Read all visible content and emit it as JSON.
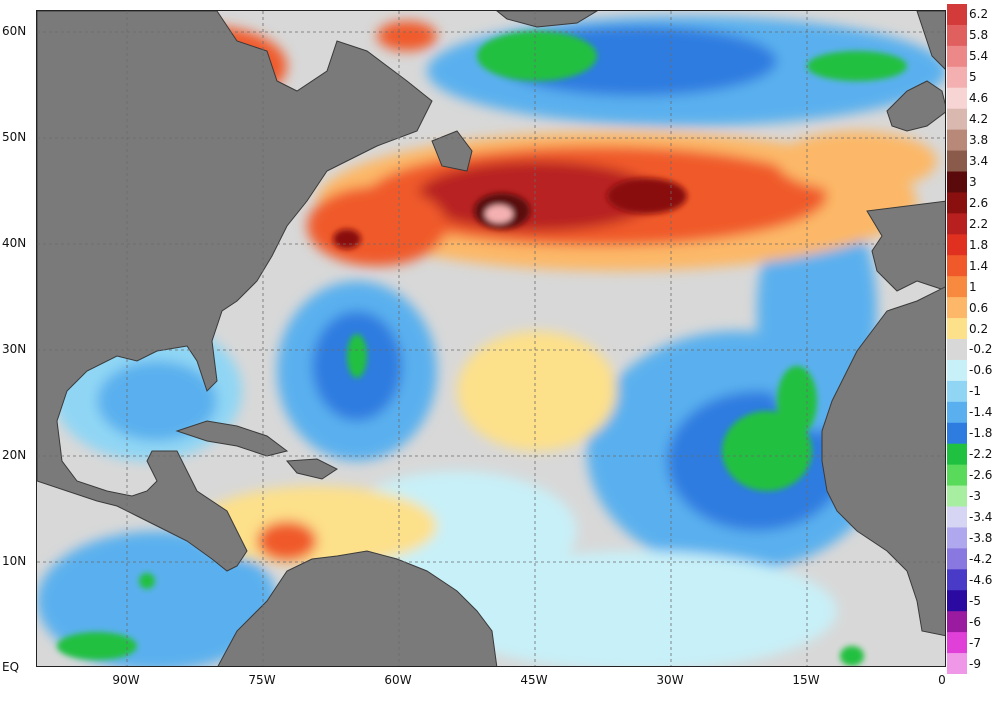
{
  "map": {
    "lat_labels": [
      "60N",
      "50N",
      "40N",
      "30N",
      "20N",
      "10N",
      "EQ"
    ],
    "lon_labels": [
      "90W",
      "75W",
      "60W",
      "45W",
      "30W",
      "15W",
      "0"
    ],
    "colors": {
      "land": "#7a7a7a",
      "land_border": "#3a3a3a",
      "neutral_ocean": "#d8d8d8",
      "grid": "#6b6b6b"
    },
    "colorbar": {
      "levels": [
        "6.2",
        "5.8",
        "5.4",
        "5",
        "4.6",
        "4.2",
        "3.8",
        "3.4",
        "3",
        "2.6",
        "2.2",
        "1.8",
        "1.4",
        "1",
        "0.6",
        "0.2",
        "-0.2",
        "-0.6",
        "-1",
        "-1.4",
        "-1.8",
        "-2.2",
        "-2.6",
        "-3",
        "-3.4",
        "-3.8",
        "-4.2",
        "-4.6",
        "-5",
        "-6",
        "-7",
        "-9"
      ],
      "colors": [
        "#d33a3a",
        "#e06060",
        "#ec8888",
        "#f4b0b0",
        "#f7d5d5",
        "#d9b8b0",
        "#b88878",
        "#8a5a4a",
        "#5a0a0a",
        "#8a1010",
        "#b82020",
        "#e03020",
        "#f05a2a",
        "#f88a40",
        "#fcb868",
        "#fde08a",
        "#d8d8d8",
        "#c8f0f8",
        "#90d6f4",
        "#5ab0ee",
        "#2e7ce0",
        "#20c040",
        "#5ada5a",
        "#a8eea0",
        "#d6d6f4",
        "#b0a8ee",
        "#8878e0",
        "#4a3ac8",
        "#2a0aa0",
        "#9a1aa0",
        "#e040d8",
        "#f098e8"
      ]
    }
  }
}
